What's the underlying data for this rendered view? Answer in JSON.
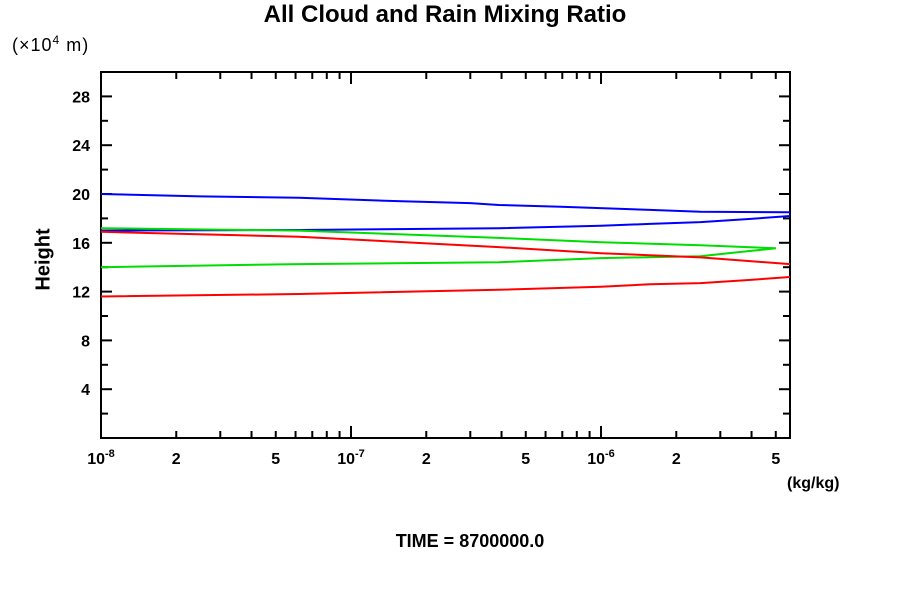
{
  "chart_data": {
    "type": "line",
    "title": "All Cloud and Rain Mixing Ratio",
    "time_label": "TIME = 8700000.0",
    "y_axis_label": "Height",
    "y_axis_unit": {
      "prefix": "(×10",
      "sup": "4",
      "suffix": " m)"
    },
    "x_axis_unit": "(kg/kg)",
    "x_scale": "log",
    "x_range": [
      1e-08,
      5.7e-06
    ],
    "y_range": [
      0,
      30
    ],
    "grid": false,
    "legend": "none",
    "frame": "box-with-inward-ticks",
    "x_ticks": [
      {
        "v": 1e-08,
        "major": true,
        "label": "10",
        "exp": "-8"
      },
      {
        "v": 2e-08,
        "label": "2"
      },
      {
        "v": 3e-08
      },
      {
        "v": 4e-08
      },
      {
        "v": 5e-08,
        "label": "5"
      },
      {
        "v": 6e-08
      },
      {
        "v": 7e-08
      },
      {
        "v": 8e-08
      },
      {
        "v": 9e-08
      },
      {
        "v": 1e-07,
        "major": true,
        "label": "10",
        "exp": "-7"
      },
      {
        "v": 2e-07,
        "label": "2"
      },
      {
        "v": 3e-07
      },
      {
        "v": 4e-07
      },
      {
        "v": 5e-07,
        "label": "5"
      },
      {
        "v": 6e-07
      },
      {
        "v": 7e-07
      },
      {
        "v": 8e-07
      },
      {
        "v": 9e-07
      },
      {
        "v": 1e-06,
        "major": true,
        "label": "10",
        "exp": "-6"
      },
      {
        "v": 2e-06,
        "label": "2"
      },
      {
        "v": 3e-06
      },
      {
        "v": 4e-06
      },
      {
        "v": 5e-06,
        "label": "5"
      }
    ],
    "y_ticks": [
      {
        "v": 2
      },
      {
        "v": 4,
        "label": "4"
      },
      {
        "v": 6
      },
      {
        "v": 8,
        "label": "8"
      },
      {
        "v": 10
      },
      {
        "v": 12,
        "label": "12"
      },
      {
        "v": 14
      },
      {
        "v": 16,
        "label": "16"
      },
      {
        "v": 18
      },
      {
        "v": 20,
        "label": "20"
      },
      {
        "v": 22
      },
      {
        "v": 24,
        "label": "24"
      },
      {
        "v": 26
      },
      {
        "v": 28,
        "label": "28"
      }
    ],
    "series": [
      {
        "name": "blue-upper-branch",
        "color": "#0000ff",
        "points": [
          [
            1e-08,
            20.0
          ],
          [
            2.5e-08,
            19.8
          ],
          [
            6.2e-08,
            19.7
          ],
          [
            1.6e-07,
            19.4
          ],
          [
            3e-07,
            19.25
          ],
          [
            3.9e-07,
            19.1
          ],
          [
            6.9e-07,
            18.95
          ],
          [
            1.57e-06,
            18.7
          ],
          [
            2.5e-06,
            18.55
          ],
          [
            5.7e-06,
            18.5
          ]
        ]
      },
      {
        "name": "blue-lower-branch",
        "color": "#0000ff",
        "points": [
          [
            1e-08,
            17.0
          ],
          [
            6.2e-08,
            17.05
          ],
          [
            3.9e-07,
            17.2
          ],
          [
            1e-06,
            17.4
          ],
          [
            1.57e-06,
            17.55
          ],
          [
            2.5e-06,
            17.7
          ],
          [
            3.9e-06,
            17.95
          ],
          [
            5.7e-06,
            18.2
          ]
        ]
      },
      {
        "name": "green-upper-branch",
        "color": "#00dd00",
        "points": [
          [
            1e-08,
            17.2
          ],
          [
            6.2e-08,
            17.0
          ],
          [
            3.9e-07,
            16.4
          ],
          [
            1e-06,
            16.05
          ],
          [
            2.5e-06,
            15.8
          ],
          [
            5e-06,
            15.55
          ]
        ]
      },
      {
        "name": "green-lower-branch",
        "color": "#00dd00",
        "points": [
          [
            1e-08,
            14.0
          ],
          [
            6.2e-08,
            14.25
          ],
          [
            3.9e-07,
            14.4
          ],
          [
            1e-06,
            14.75
          ],
          [
            2.5e-06,
            14.9
          ],
          [
            3.6e-06,
            15.25
          ],
          [
            5e-06,
            15.55
          ]
        ]
      },
      {
        "name": "red-upper-branch",
        "color": "#ff0000",
        "points": [
          [
            1e-08,
            16.9
          ],
          [
            6.2e-08,
            16.5
          ],
          [
            3.9e-07,
            15.65
          ],
          [
            1e-06,
            15.15
          ],
          [
            2.5e-06,
            14.8
          ],
          [
            5.7e-06,
            14.25
          ]
        ]
      },
      {
        "name": "red-lower-branch",
        "color": "#ff0000",
        "points": [
          [
            1e-08,
            11.6
          ],
          [
            6.2e-08,
            11.8
          ],
          [
            3.9e-07,
            12.15
          ],
          [
            1e-06,
            12.4
          ],
          [
            1.57e-06,
            12.6
          ],
          [
            2.5e-06,
            12.7
          ],
          [
            3.9e-06,
            12.95
          ],
          [
            5.7e-06,
            13.2
          ]
        ]
      }
    ],
    "colors": {
      "axis": "#000000",
      "blue": "#0000ff",
      "green": "#00dd00",
      "red": "#ff0000"
    }
  }
}
